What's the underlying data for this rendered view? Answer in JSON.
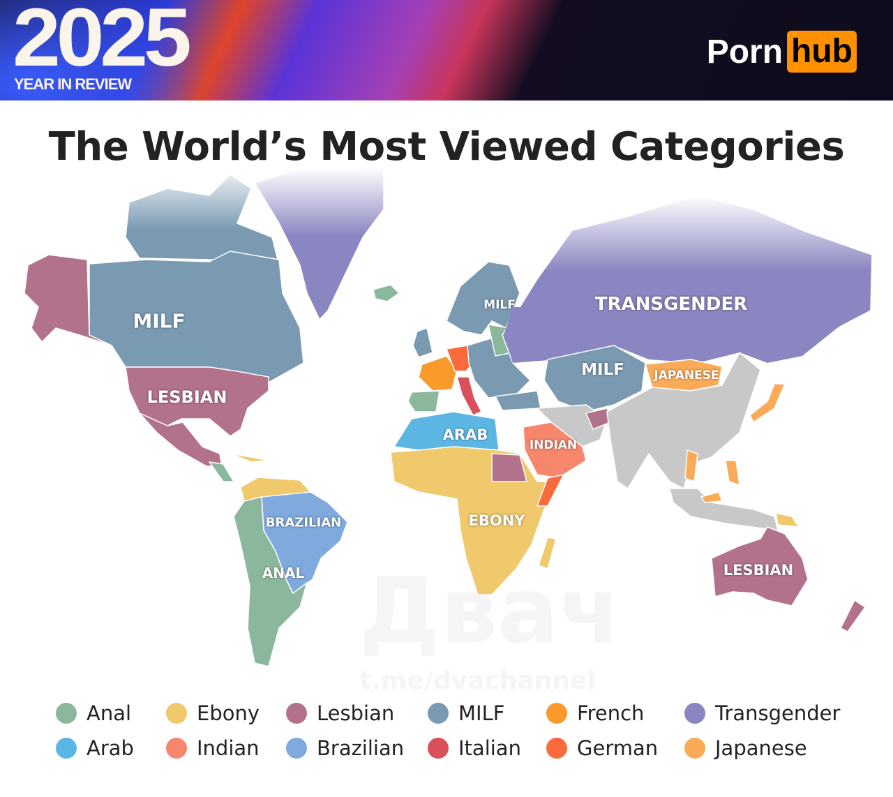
{
  "header": {
    "year": "2025",
    "subtitle": "YEAR IN REVIEW",
    "logo_left": "Porn",
    "logo_right": "hub"
  },
  "title": "The World’s Most Viewed Categories",
  "map_labels": {
    "canada": "MILF",
    "usa": "LESBIAN",
    "scandinavia": "MILF",
    "russia": "TRANSGENDER",
    "central_asia": "MILF",
    "mongolia": "JAPANESE",
    "north_africa": "ARAB",
    "arabia": "INDIAN",
    "brazil": "BRAZILIAN",
    "south_america": "ANAL",
    "africa": "EBONY",
    "australia": "LESBIAN"
  },
  "legend": [
    {
      "label": "Anal",
      "color": "#8bb89c"
    },
    {
      "label": "Ebony",
      "color": "#f0c96c"
    },
    {
      "label": "Lesbian",
      "color": "#b3728c"
    },
    {
      "label": "MILF",
      "color": "#7a9ab2"
    },
    {
      "label": "French",
      "color": "#f99a2a"
    },
    {
      "label": "Transgender",
      "color": "#8a86c2"
    },
    {
      "label": "Arab",
      "color": "#5cb6e4"
    },
    {
      "label": "Indian",
      "color": "#f6866c"
    },
    {
      "label": "Brazilian",
      "color": "#80a9de"
    },
    {
      "label": "Italian",
      "color": "#d9505a"
    },
    {
      "label": "German",
      "color": "#fa6a3c"
    },
    {
      "label": "Japanese",
      "color": "#fbab58"
    }
  ],
  "no_data_color": "#c8c8c8",
  "watermark": {
    "text": "Двач",
    "handle": "t.me/dvachannel"
  }
}
